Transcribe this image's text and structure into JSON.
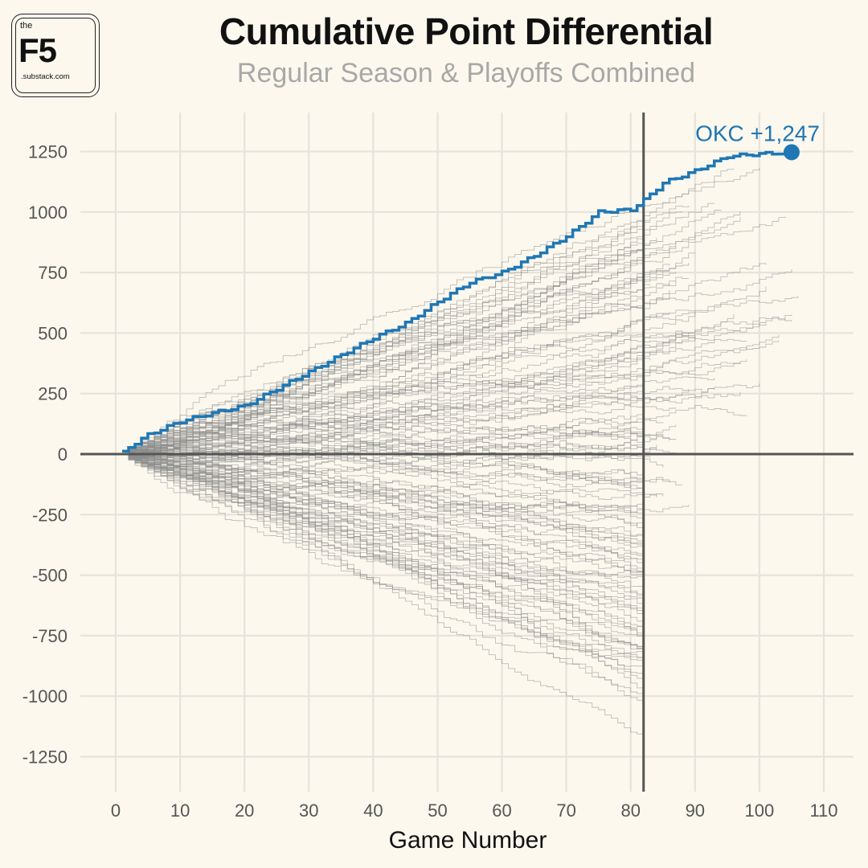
{
  "logo": {
    "the": "the",
    "name": "F5",
    "domain": ".substack.com"
  },
  "chart_data": {
    "type": "line",
    "title": "Cumulative Point Differential",
    "subtitle": "Regular Season & Playoffs Combined",
    "xlabel": "Game Number",
    "ylabel": "",
    "xlim": [
      0,
      113
    ],
    "ylim": [
      -1380,
      1380
    ],
    "x_ticks": [
      0,
      10,
      20,
      30,
      40,
      50,
      60,
      70,
      80,
      90,
      100,
      110
    ],
    "x_tick_labels": [
      "0",
      "10",
      "20",
      "30",
      "40",
      "50",
      "60",
      "70",
      "80",
      "90",
      "100",
      "110"
    ],
    "y_ticks": [
      1250,
      1000,
      750,
      500,
      250,
      0,
      -250,
      -500,
      -750,
      -1000,
      -1250
    ],
    "y_tick_labels": [
      "1250",
      "1000",
      "750",
      "500",
      "250",
      "0",
      "-250",
      "-500",
      "-750",
      "-1000",
      "-1250"
    ],
    "reference_lines": {
      "horizontal_y": 0,
      "vertical_x": 82
    },
    "grid": true,
    "highlight": {
      "label": "OKC +1,247",
      "color": "#1f77b4",
      "end": [
        105,
        1247
      ],
      "x": [
        1,
        5,
        10,
        15,
        20,
        25,
        30,
        35,
        40,
        45,
        50,
        55,
        60,
        65,
        70,
        75,
        80,
        82,
        85,
        90,
        95,
        100,
        105
      ],
      "y": [
        12,
        80,
        135,
        170,
        200,
        270,
        340,
        410,
        480,
        540,
        630,
        710,
        750,
        820,
        900,
        1000,
        1010,
        1050,
        1120,
        1170,
        1230,
        1240,
        1247
      ]
    },
    "background_series": {
      "color": "#8c8c8c",
      "description_count": 130,
      "ending_ranges": {
        "x_end_min": 82,
        "x_end_max": 107,
        "y_end_min": -1250,
        "y_end_max": 1100
      }
    }
  }
}
